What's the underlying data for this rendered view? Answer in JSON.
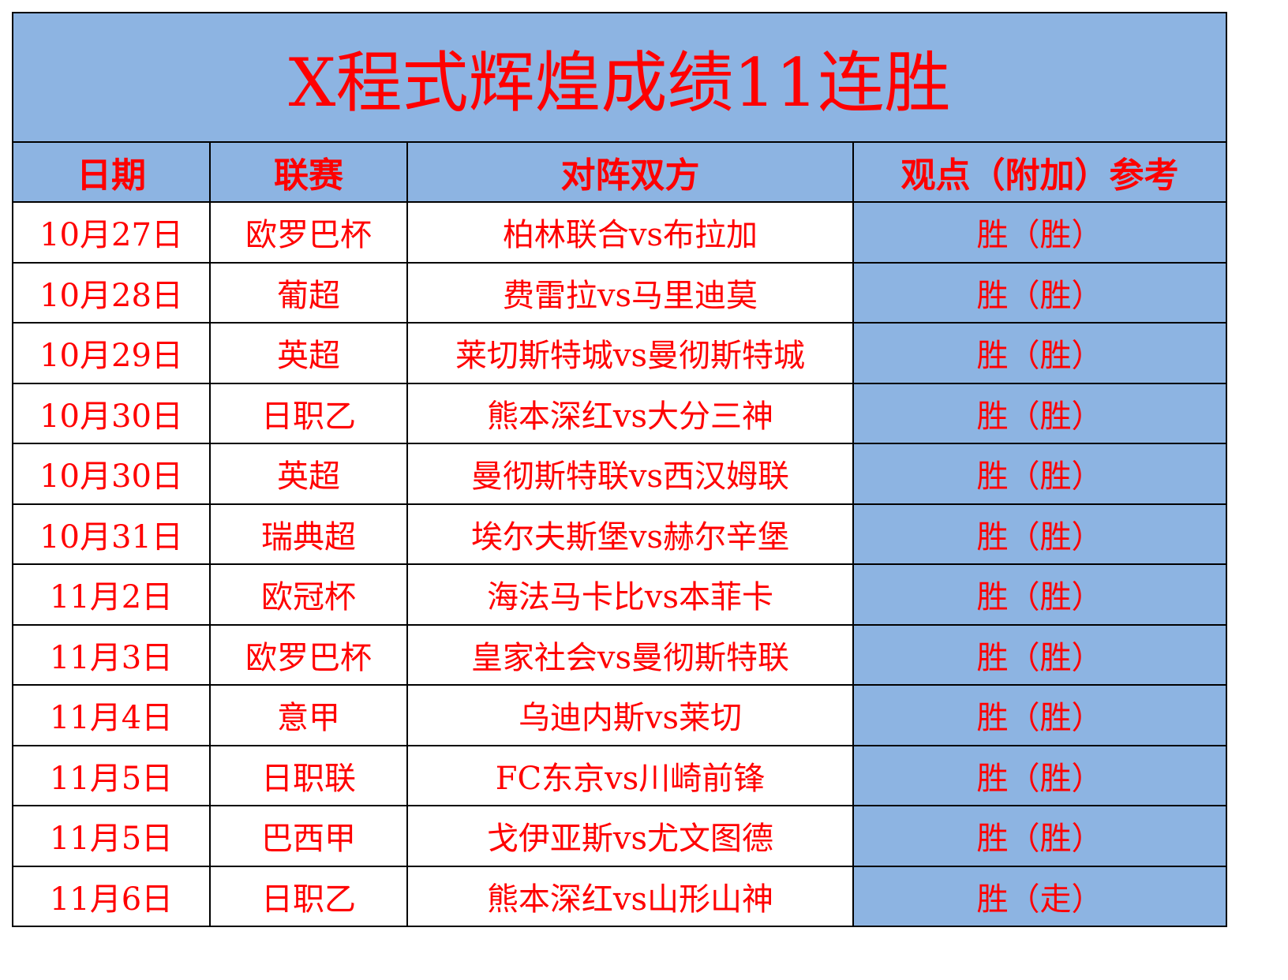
{
  "title": "X程式辉煌成绩11连胜",
  "colors": {
    "header_bg": "#8db4e2",
    "text": "#ff0000",
    "result_bg": "#8db4e2"
  },
  "headers": [
    "日期",
    "联赛",
    "对阵双方",
    "观点（附加）参考"
  ],
  "rows": [
    [
      "10月27日",
      "欧罗巴杯",
      "柏林联合vs布拉加",
      "胜（胜）"
    ],
    [
      "10月28日",
      "葡超",
      "费雷拉vs马里迪莫",
      "胜（胜）"
    ],
    [
      "10月29日",
      "英超",
      "莱切斯特城vs曼彻斯特城",
      "胜（胜）"
    ],
    [
      "10月30日",
      "日职乙",
      "熊本深红vs大分三神",
      "胜（胜）"
    ],
    [
      "10月30日",
      "英超",
      "曼彻斯特联vs西汉姆联",
      "胜（胜）"
    ],
    [
      "10月31日",
      "瑞典超",
      "埃尔夫斯堡vs赫尔辛堡",
      "胜（胜）"
    ],
    [
      "11月2日",
      "欧冠杯",
      "海法马卡比vs本菲卡",
      "胜（胜）"
    ],
    [
      "11月3日",
      "欧罗巴杯",
      "皇家社会vs曼彻斯特联",
      "胜（胜）"
    ],
    [
      "11月4日",
      "意甲",
      "乌迪内斯vs莱切",
      "胜（胜）"
    ],
    [
      "11月5日",
      "日职联",
      "FC东京vs川崎前锋",
      "胜（胜）"
    ],
    [
      "11月5日",
      "巴西甲",
      "戈伊亚斯vs尤文图德",
      "胜（胜）"
    ],
    [
      "11月6日",
      "日职乙",
      "熊本深红vs山形山神",
      "胜（走）"
    ]
  ]
}
